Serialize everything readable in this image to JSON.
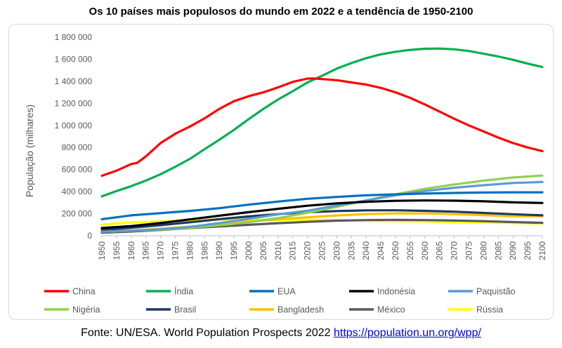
{
  "title": "Os 10 países mais populosos do mundo em 2022 e a tendência de 1950-2100",
  "source_text": "Fonte: UN/ESA. World Population Prospects 2022 ",
  "source_link": "https://population.un.org/wpp/",
  "chart_data": {
    "type": "line",
    "title": "Os 10 países mais populosos do mundo em 2022 e a tendência de 1950-2100",
    "xlabel": "",
    "ylabel": "População (milhares)",
    "x_ticks": [
      "1950",
      "1955",
      "1960",
      "1965",
      "1970",
      "1975",
      "1980",
      "1985",
      "1990",
      "1995",
      "2000",
      "2005",
      "2010",
      "2015",
      "2020",
      "2025",
      "2030",
      "2035",
      "2040",
      "2045",
      "2050",
      "2055",
      "2060",
      "2065",
      "2070",
      "2075",
      "2080",
      "2085",
      "2090",
      "2095",
      "2100"
    ],
    "y_ticks": [
      "0",
      "200 000",
      "400 000",
      "600 000",
      "800 000",
      "1 000 000",
      "1 200 000",
      "1 400 000",
      "1 600 000",
      "1 800 000"
    ],
    "ylim": [
      0,
      1800000
    ],
    "xlim": [
      1950,
      2100
    ],
    "grid": false,
    "legend_position": "bottom",
    "series": [
      {
        "name": "China",
        "color": "#ff0000",
        "x": [
          1950,
          1955,
          1960,
          1962,
          1965,
          1970,
          1975,
          1980,
          1985,
          1990,
          1995,
          2000,
          2005,
          2010,
          2015,
          2020,
          2022,
          2025,
          2030,
          2035,
          2040,
          2045,
          2050,
          2055,
          2060,
          2065,
          2070,
          2075,
          2080,
          2085,
          2090,
          2095,
          2100
        ],
        "values": [
          544000,
          590000,
          650000,
          660000,
          720000,
          840000,
          925000,
          990000,
          1065000,
          1150000,
          1220000,
          1265000,
          1300000,
          1345000,
          1395000,
          1425000,
          1426000,
          1420000,
          1410000,
          1390000,
          1370000,
          1340000,
          1300000,
          1250000,
          1190000,
          1125000,
          1060000,
          1000000,
          945000,
          890000,
          840000,
          800000,
          767000
        ]
      },
      {
        "name": "Índia",
        "color": "#00b050",
        "x": [
          1950,
          1955,
          1960,
          1965,
          1970,
          1975,
          1980,
          1985,
          1990,
          1995,
          2000,
          2005,
          2010,
          2015,
          2020,
          2025,
          2030,
          2035,
          2040,
          2045,
          2050,
          2055,
          2060,
          2065,
          2070,
          2075,
          2080,
          2085,
          2090,
          2095,
          2100
        ],
        "values": [
          357000,
          405000,
          450000,
          500000,
          558000,
          625000,
          697000,
          785000,
          870000,
          960000,
          1057000,
          1150000,
          1235000,
          1310000,
          1390000,
          1450000,
          1515000,
          1565000,
          1610000,
          1645000,
          1668000,
          1685000,
          1695000,
          1697000,
          1690000,
          1675000,
          1650000,
          1625000,
          1595000,
          1560000,
          1530000
        ]
      },
      {
        "name": "EUA",
        "color": "#0070c0",
        "x": [
          1950,
          1960,
          1970,
          1980,
          1990,
          2000,
          2010,
          2020,
          2030,
          2040,
          2050,
          2060,
          2070,
          2080,
          2090,
          2100
        ],
        "values": [
          150000,
          185000,
          205000,
          225000,
          250000,
          282000,
          310000,
          335000,
          352000,
          367000,
          375000,
          382000,
          388000,
          392000,
          394000,
          394000
        ]
      },
      {
        "name": "Indonésia",
        "color": "#000000",
        "x": [
          1950,
          1960,
          1970,
          1980,
          1990,
          2000,
          2010,
          2020,
          2030,
          2040,
          2050,
          2060,
          2070,
          2080,
          2090,
          2100
        ],
        "values": [
          70000,
          88000,
          115000,
          148000,
          182000,
          214000,
          244000,
          272000,
          293000,
          308000,
          317000,
          320000,
          318000,
          312000,
          303000,
          297000
        ]
      },
      {
        "name": "Paquistão",
        "color": "#5b9bd5",
        "x": [
          1950,
          1960,
          1970,
          1980,
          1990,
          2000,
          2010,
          2020,
          2030,
          2040,
          2050,
          2060,
          2070,
          2080,
          2090,
          2100
        ],
        "values": [
          37000,
          45000,
          58000,
          80000,
          115000,
          154000,
          194000,
          227000,
          274000,
          320000,
          367000,
          405000,
          435000,
          458000,
          478000,
          487000
        ]
      },
      {
        "name": "Nigéria",
        "color": "#92d050",
        "x": [
          1950,
          1960,
          1970,
          1980,
          1990,
          2000,
          2010,
          2020,
          2030,
          2040,
          2050,
          2060,
          2070,
          2080,
          2090,
          2100
        ],
        "values": [
          37000,
          45000,
          55000,
          72000,
          95000,
          122000,
          160000,
          208000,
          262000,
          320000,
          375000,
          425000,
          465000,
          500000,
          528000,
          546000
        ]
      },
      {
        "name": "Brasil",
        "color": "#1f3864",
        "x": [
          1950,
          1960,
          1970,
          1980,
          1990,
          2000,
          2010,
          2020,
          2030,
          2040,
          2050,
          2060,
          2070,
          2080,
          2090,
          2100
        ],
        "values": [
          53000,
          72000,
          96000,
          122000,
          150000,
          175000,
          196000,
          213000,
          224000,
          230000,
          231000,
          226000,
          218000,
          207000,
          195000,
          185000
        ]
      },
      {
        "name": "Bangladesh",
        "color": "#ffc000",
        "x": [
          1950,
          1960,
          1970,
          1980,
          1990,
          2000,
          2010,
          2020,
          2030,
          2040,
          2050,
          2060,
          2070,
          2080,
          2090,
          2100
        ],
        "values": [
          39000,
          48000,
          65000,
          82000,
          107000,
          130000,
          148000,
          167000,
          184000,
          196000,
          203000,
          202000,
          196000,
          187000,
          177000,
          177000
        ]
      },
      {
        "name": "México",
        "color": "#595959",
        "x": [
          1950,
          1960,
          1970,
          1980,
          1990,
          2000,
          2010,
          2020,
          2030,
          2040,
          2050,
          2060,
          2070,
          2080,
          2090,
          2100
        ],
        "values": [
          28000,
          38000,
          52000,
          70000,
          84000,
          99000,
          114000,
          126000,
          137000,
          142000,
          144000,
          142000,
          138000,
          132000,
          124000,
          117000
        ]
      },
      {
        "name": "Rússia",
        "color": "#ffff00",
        "x": [
          1950,
          1960,
          1970,
          1980,
          1990,
          2000,
          2010,
          2020,
          2030,
          2040,
          2050,
          2060,
          2070,
          2080,
          2090,
          2100
        ],
        "values": [
          102000,
          120000,
          130000,
          139000,
          148000,
          146000,
          143000,
          145000,
          141000,
          137000,
          133000,
          129000,
          125000,
          121000,
          116000,
          112000
        ]
      }
    ]
  }
}
